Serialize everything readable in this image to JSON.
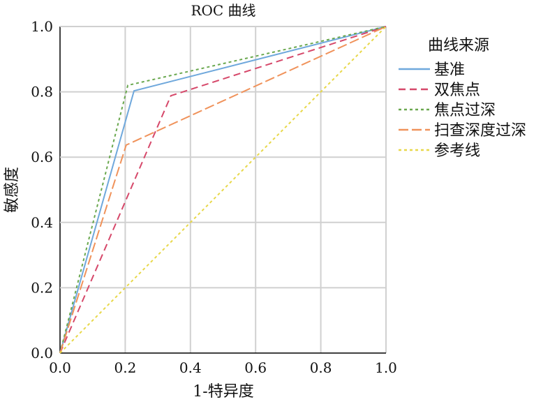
{
  "chart_data": {
    "type": "line",
    "title": "ROC 曲线",
    "xlabel": "1-特异度",
    "ylabel": "敏感度",
    "xlim": [
      0,
      1
    ],
    "ylim": [
      0,
      1
    ],
    "grid": true,
    "xticks": [
      "0.0",
      "0.2",
      "0.4",
      "0.6",
      "0.8",
      "1.0"
    ],
    "yticks": [
      "0.0",
      "0.2",
      "0.4",
      "0.6",
      "0.8",
      "1.0"
    ],
    "legend_title": "曲线来源",
    "legend_position": "right",
    "series": [
      {
        "name": "基准",
        "color": "#6fa8dc",
        "dash": "solid",
        "x": [
          0,
          0.227,
          1
        ],
        "y": [
          0,
          0.803,
          1
        ]
      },
      {
        "name": "双焦点",
        "color": "#d6486a",
        "dash": "dashed",
        "x": [
          0,
          0.34,
          1
        ],
        "y": [
          0,
          0.788,
          1
        ]
      },
      {
        "name": "焦点过深",
        "color": "#6aa84f",
        "dash": "dotted",
        "x": [
          0,
          0.208,
          1
        ],
        "y": [
          0,
          0.82,
          1
        ]
      },
      {
        "name": "扫查深度过深",
        "color": "#f0925a",
        "dash": "longdash",
        "x": [
          0,
          0.203,
          1
        ],
        "y": [
          0,
          0.637,
          1
        ]
      },
      {
        "name": "参考线",
        "color": "#e8d84a",
        "dash": "dotted",
        "x": [
          0,
          1
        ],
        "y": [
          0,
          1
        ]
      }
    ]
  }
}
